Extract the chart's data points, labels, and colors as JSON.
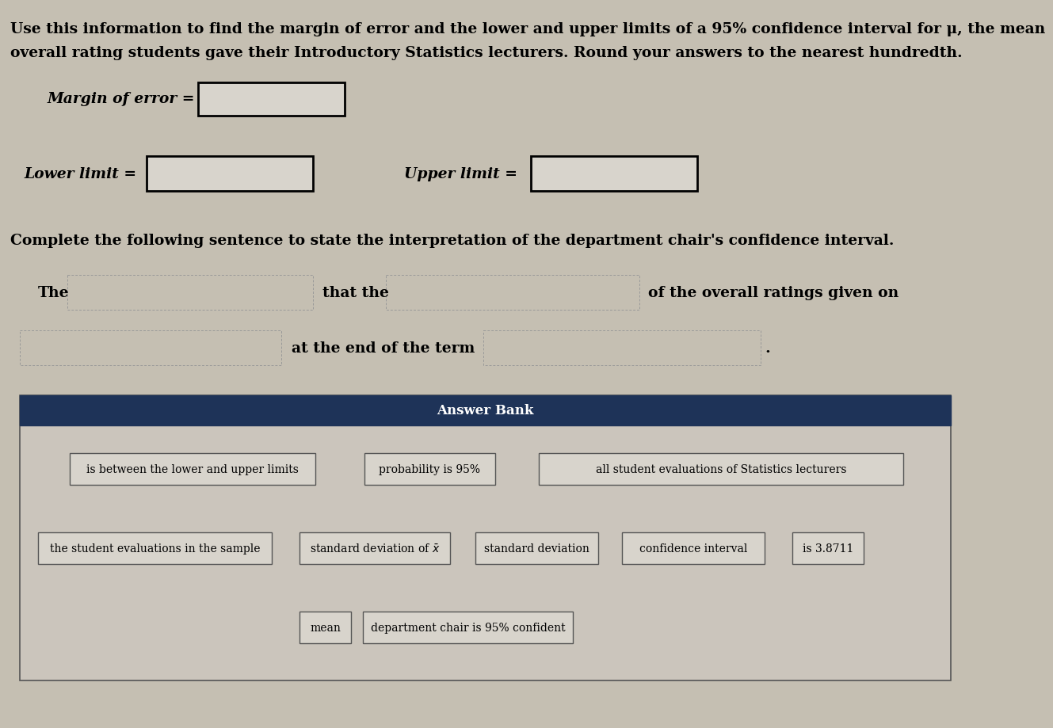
{
  "bg_color": "#c5bfb2",
  "title_text1": "Use this information to find the margin of error and the lower and upper limits of a 95% confidence interval for μ, the mean",
  "title_text2": "overall rating students gave their Introductory Statistics lecturers. Round your answers to the nearest hundredth.",
  "margin_label": "Margin of error =",
  "lower_label": "Lower limit =",
  "upper_label": "Upper limit =",
  "complete_text": "Complete the following sentence to state the interpretation of the department chair's confidence interval.",
  "answer_bank_title": "Answer Bank",
  "answer_bank_bg": "#1e3358",
  "answer_bank_text_color": "#ffffff",
  "answer_items_row1": [
    "is between the lower and upper limits",
    "probability is 95%",
    "all student evaluations of Statistics lecturers"
  ],
  "answer_items_row2": [
    "the student evaluations in the sample",
    "standard deviation of x-bar",
    "standard deviation",
    "confidence interval",
    "is 3.8711"
  ],
  "answer_items_row3_a": "mean",
  "answer_items_row3_b": "department chair is 95% confident",
  "input_box_color": "#d8d4cc",
  "answer_outer_bg": "#cbc5bc"
}
